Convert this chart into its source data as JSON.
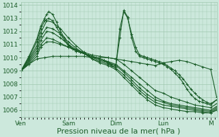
{
  "background_color": "#cce8dc",
  "grid_color": "#a0c8b0",
  "line_color": "#1a5c28",
  "xlabel": "Pression niveau de la mer( hPa )",
  "xlabel_fontsize": 8,
  "tick_label_fontsize": 6.5,
  "ylim": [
    1005.5,
    1014.2
  ],
  "yticks": [
    1006,
    1007,
    1008,
    1009,
    1010,
    1011,
    1012,
    1013,
    1014
  ],
  "x_day_labels": [
    "Ven",
    "Sam",
    "Dim",
    "Lun",
    "M"
  ],
  "x_day_positions": [
    0,
    24,
    48,
    72,
    96
  ],
  "total_hours": 100,
  "series": [
    {
      "points": [
        [
          0,
          1009.0
        ],
        [
          4,
          1009.5
        ],
        [
          8,
          1009.9
        ],
        [
          12,
          1010.0
        ],
        [
          16,
          1010.1
        ],
        [
          20,
          1010.1
        ],
        [
          24,
          1010.1
        ],
        [
          28,
          1010.1
        ],
        [
          32,
          1010.1
        ],
        [
          36,
          1010.0
        ],
        [
          40,
          1010.0
        ],
        [
          44,
          1010.0
        ],
        [
          48,
          1009.9
        ],
        [
          52,
          1009.8
        ],
        [
          56,
          1009.7
        ],
        [
          60,
          1009.6
        ],
        [
          64,
          1009.5
        ],
        [
          68,
          1009.4
        ],
        [
          72,
          1009.6
        ],
        [
          76,
          1009.7
        ],
        [
          80,
          1009.8
        ],
        [
          84,
          1009.7
        ],
        [
          88,
          1009.5
        ],
        [
          92,
          1009.3
        ],
        [
          96,
          1009.1
        ],
        [
          99,
          1007.0
        ]
      ]
    },
    {
      "points": [
        [
          0,
          1009.0
        ],
        [
          4,
          1009.5
        ],
        [
          8,
          1010.1
        ],
        [
          10,
          1010.8
        ],
        [
          13,
          1011.2
        ],
        [
          16,
          1011.2
        ],
        [
          20,
          1011.0
        ],
        [
          24,
          1010.8
        ],
        [
          28,
          1010.6
        ],
        [
          32,
          1010.4
        ],
        [
          36,
          1010.2
        ],
        [
          40,
          1010.1
        ],
        [
          44,
          1010.0
        ],
        [
          48,
          1009.9
        ],
        [
          52,
          1009.5
        ],
        [
          56,
          1009.0
        ],
        [
          60,
          1008.5
        ],
        [
          64,
          1008.0
        ],
        [
          68,
          1007.5
        ],
        [
          72,
          1007.3
        ],
        [
          76,
          1007.0
        ],
        [
          80,
          1006.8
        ],
        [
          84,
          1006.6
        ],
        [
          88,
          1006.4
        ],
        [
          92,
          1006.3
        ],
        [
          96,
          1006.2
        ],
        [
          99,
          1006.5
        ]
      ]
    },
    {
      "points": [
        [
          0,
          1009.0
        ],
        [
          4,
          1009.6
        ],
        [
          8,
          1010.3
        ],
        [
          10,
          1011.0
        ],
        [
          13,
          1011.5
        ],
        [
          16,
          1011.4
        ],
        [
          20,
          1011.1
        ],
        [
          24,
          1010.8
        ],
        [
          28,
          1010.5
        ],
        [
          32,
          1010.3
        ],
        [
          36,
          1010.1
        ],
        [
          40,
          1009.9
        ],
        [
          44,
          1009.7
        ],
        [
          48,
          1009.5
        ],
        [
          52,
          1009.0
        ],
        [
          56,
          1008.5
        ],
        [
          60,
          1008.0
        ],
        [
          64,
          1007.5
        ],
        [
          68,
          1007.0
        ],
        [
          72,
          1006.7
        ],
        [
          76,
          1006.5
        ],
        [
          80,
          1006.4
        ],
        [
          84,
          1006.3
        ],
        [
          88,
          1006.2
        ],
        [
          92,
          1006.1
        ],
        [
          96,
          1006.0
        ],
        [
          99,
          1006.3
        ]
      ]
    },
    {
      "points": [
        [
          0,
          1009.0
        ],
        [
          4,
          1009.7
        ],
        [
          8,
          1010.5
        ],
        [
          10,
          1011.3
        ],
        [
          13,
          1012.0
        ],
        [
          16,
          1011.9
        ],
        [
          20,
          1011.5
        ],
        [
          24,
          1011.0
        ],
        [
          28,
          1010.6
        ],
        [
          32,
          1010.3
        ],
        [
          36,
          1010.0
        ],
        [
          40,
          1009.8
        ],
        [
          44,
          1009.6
        ],
        [
          48,
          1009.4
        ],
        [
          52,
          1008.9
        ],
        [
          56,
          1008.3
        ],
        [
          60,
          1007.7
        ],
        [
          64,
          1007.2
        ],
        [
          68,
          1006.8
        ],
        [
          72,
          1006.6
        ],
        [
          76,
          1006.4
        ],
        [
          80,
          1006.3
        ],
        [
          84,
          1006.2
        ],
        [
          88,
          1006.1
        ],
        [
          92,
          1006.0
        ],
        [
          96,
          1005.9
        ],
        [
          99,
          1006.2
        ]
      ]
    },
    {
      "points": [
        [
          0,
          1009.0
        ],
        [
          4,
          1009.8
        ],
        [
          8,
          1010.7
        ],
        [
          10,
          1011.6
        ],
        [
          13,
          1012.3
        ],
        [
          16,
          1012.2
        ],
        [
          20,
          1011.8
        ],
        [
          24,
          1011.2
        ],
        [
          28,
          1010.7
        ],
        [
          32,
          1010.3
        ],
        [
          36,
          1009.9
        ],
        [
          40,
          1009.7
        ],
        [
          44,
          1009.5
        ],
        [
          48,
          1009.2
        ],
        [
          52,
          1008.7
        ],
        [
          56,
          1008.1
        ],
        [
          60,
          1007.5
        ],
        [
          64,
          1007.0
        ],
        [
          68,
          1006.6
        ],
        [
          72,
          1006.4
        ],
        [
          76,
          1006.3
        ],
        [
          80,
          1006.2
        ],
        [
          84,
          1006.1
        ],
        [
          88,
          1006.0
        ],
        [
          92,
          1005.9
        ],
        [
          96,
          1005.8
        ],
        [
          99,
          1006.1
        ]
      ]
    },
    {
      "points": [
        [
          0,
          1009.0
        ],
        [
          4,
          1009.9
        ],
        [
          8,
          1010.9
        ],
        [
          10,
          1011.9
        ],
        [
          13,
          1012.8
        ],
        [
          16,
          1012.7
        ],
        [
          20,
          1012.2
        ],
        [
          24,
          1011.5
        ],
        [
          28,
          1010.9
        ],
        [
          32,
          1010.4
        ],
        [
          36,
          1009.9
        ],
        [
          40,
          1009.6
        ],
        [
          44,
          1009.4
        ],
        [
          48,
          1009.1
        ],
        [
          52,
          1008.5
        ],
        [
          56,
          1007.9
        ],
        [
          60,
          1007.3
        ],
        [
          64,
          1006.8
        ],
        [
          68,
          1006.4
        ],
        [
          72,
          1006.2
        ],
        [
          76,
          1006.1
        ],
        [
          80,
          1006.0
        ],
        [
          84,
          1005.9
        ],
        [
          88,
          1005.9
        ],
        [
          92,
          1005.8
        ],
        [
          96,
          1005.8
        ],
        [
          99,
          1006.0
        ]
      ]
    },
    {
      "points": [
        [
          0,
          1009.0
        ],
        [
          4,
          1010.0
        ],
        [
          8,
          1011.2
        ],
        [
          10,
          1012.2
        ],
        [
          12,
          1012.8
        ],
        [
          14,
          1013.0
        ],
        [
          16,
          1012.8
        ],
        [
          18,
          1012.3
        ],
        [
          20,
          1011.8
        ],
        [
          22,
          1011.3
        ],
        [
          24,
          1010.9
        ],
        [
          26,
          1010.7
        ],
        [
          28,
          1010.5
        ],
        [
          30,
          1010.4
        ],
        [
          32,
          1010.3
        ],
        [
          34,
          1010.2
        ],
        [
          36,
          1010.1
        ],
        [
          38,
          1010.0
        ],
        [
          40,
          1009.9
        ],
        [
          42,
          1009.8
        ],
        [
          44,
          1009.6
        ],
        [
          46,
          1009.4
        ],
        [
          48,
          1009.3
        ],
        [
          50,
          1012.2
        ],
        [
          52,
          1013.5
        ],
        [
          54,
          1013.0
        ],
        [
          56,
          1011.8
        ],
        [
          58,
          1010.8
        ],
        [
          60,
          1010.2
        ],
        [
          62,
          1010.1
        ],
        [
          64,
          1010.0
        ],
        [
          66,
          1009.9
        ],
        [
          68,
          1009.8
        ],
        [
          70,
          1009.7
        ],
        [
          72,
          1009.6
        ],
        [
          74,
          1009.4
        ],
        [
          76,
          1009.2
        ],
        [
          78,
          1009.0
        ],
        [
          80,
          1008.7
        ],
        [
          82,
          1008.4
        ],
        [
          84,
          1008.0
        ],
        [
          86,
          1007.6
        ],
        [
          88,
          1007.3
        ],
        [
          90,
          1007.0
        ],
        [
          92,
          1006.8
        ],
        [
          94,
          1006.6
        ],
        [
          96,
          1006.5
        ],
        [
          99,
          1006.8
        ]
      ]
    },
    {
      "points": [
        [
          0,
          1009.0
        ],
        [
          4,
          1010.1
        ],
        [
          8,
          1011.4
        ],
        [
          10,
          1012.4
        ],
        [
          12,
          1013.0
        ],
        [
          13,
          1013.3
        ],
        [
          14,
          1013.5
        ],
        [
          16,
          1013.3
        ],
        [
          18,
          1012.7
        ],
        [
          20,
          1012.0
        ],
        [
          22,
          1011.5
        ],
        [
          24,
          1011.0
        ],
        [
          26,
          1010.7
        ],
        [
          28,
          1010.5
        ],
        [
          30,
          1010.4
        ],
        [
          32,
          1010.3
        ],
        [
          34,
          1010.2
        ],
        [
          36,
          1010.1
        ],
        [
          38,
          1010.0
        ],
        [
          40,
          1009.9
        ],
        [
          42,
          1009.8
        ],
        [
          44,
          1009.7
        ],
        [
          46,
          1009.5
        ],
        [
          48,
          1009.4
        ],
        [
          50,
          1011.5
        ],
        [
          52,
          1013.6
        ],
        [
          54,
          1013.1
        ],
        [
          56,
          1011.5
        ],
        [
          58,
          1010.5
        ],
        [
          60,
          1010.1
        ],
        [
          62,
          1010.0
        ],
        [
          64,
          1009.9
        ],
        [
          66,
          1009.8
        ],
        [
          68,
          1009.7
        ],
        [
          70,
          1009.6
        ],
        [
          72,
          1009.5
        ],
        [
          74,
          1009.3
        ],
        [
          76,
          1009.1
        ],
        [
          78,
          1008.8
        ],
        [
          80,
          1008.5
        ],
        [
          82,
          1008.1
        ],
        [
          84,
          1007.6
        ],
        [
          86,
          1007.2
        ],
        [
          88,
          1006.9
        ],
        [
          90,
          1006.7
        ],
        [
          92,
          1006.6
        ],
        [
          94,
          1006.5
        ],
        [
          96,
          1006.4
        ],
        [
          99,
          1006.8
        ]
      ]
    }
  ]
}
